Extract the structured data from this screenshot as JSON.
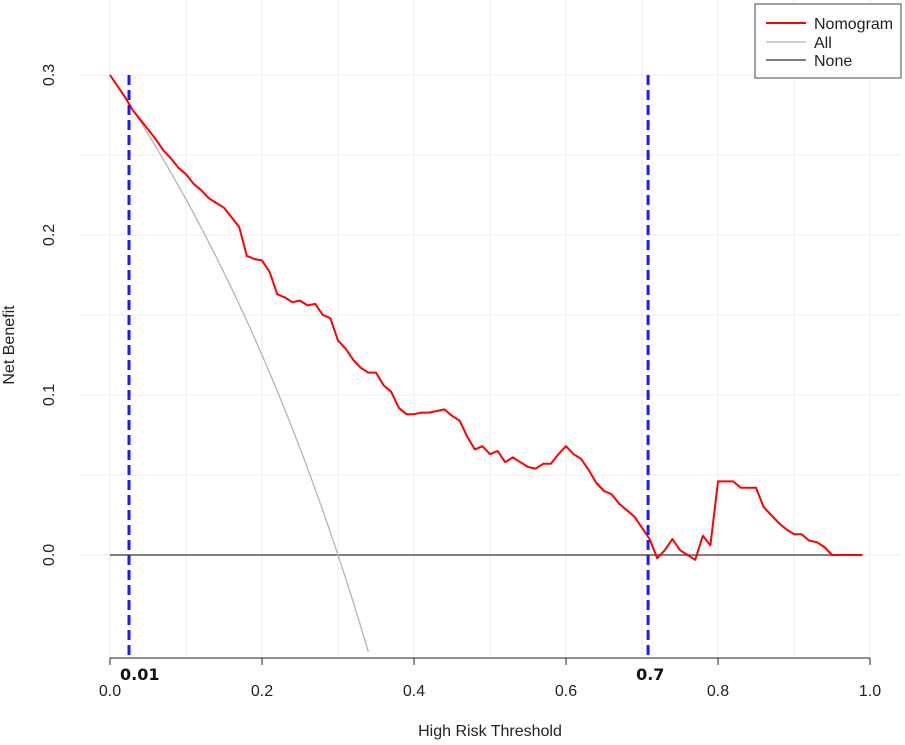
{
  "chart_data": {
    "type": "line",
    "xlabel": "High Risk Threshold",
    "ylabel": "Net Benefit",
    "xlim": [
      0.0,
      1.0
    ],
    "ylim": [
      -0.065,
      0.345
    ],
    "xticks": [
      "0.0",
      "0.2",
      "0.4",
      "0.6",
      "0.8",
      "1.0"
    ],
    "yticks": [
      "0.0",
      "0.1",
      "0.2",
      "0.3"
    ],
    "grid": true,
    "legend_position": "top-right",
    "series": [
      {
        "name": "Nomogram",
        "color": "#ff0000",
        "x": [
          0.0,
          0.01,
          0.02,
          0.03,
          0.04,
          0.05,
          0.06,
          0.07,
          0.08,
          0.09,
          0.1,
          0.11,
          0.12,
          0.13,
          0.14,
          0.15,
          0.16,
          0.17,
          0.18,
          0.19,
          0.2,
          0.21,
          0.22,
          0.23,
          0.24,
          0.25,
          0.26,
          0.27,
          0.28,
          0.29,
          0.3,
          0.31,
          0.32,
          0.33,
          0.34,
          0.35,
          0.36,
          0.37,
          0.38,
          0.39,
          0.4,
          0.41,
          0.42,
          0.43,
          0.44,
          0.45,
          0.46,
          0.47,
          0.48,
          0.49,
          0.5,
          0.51,
          0.52,
          0.53,
          0.54,
          0.55,
          0.56,
          0.57,
          0.58,
          0.59,
          0.6,
          0.61,
          0.62,
          0.63,
          0.64,
          0.65,
          0.66,
          0.67,
          0.68,
          0.69,
          0.7,
          0.71,
          0.72,
          0.73,
          0.74,
          0.75,
          0.76,
          0.77,
          0.78,
          0.79,
          0.8,
          0.81,
          0.82,
          0.83,
          0.84,
          0.85,
          0.86,
          0.87,
          0.88,
          0.89,
          0.9,
          0.91,
          0.92,
          0.93,
          0.94,
          0.95,
          0.96,
          0.97,
          0.98,
          0.99
        ],
        "y": [
          0.3,
          0.293,
          0.286,
          0.278,
          0.272,
          0.266,
          0.26,
          0.253,
          0.248,
          0.242,
          0.238,
          0.232,
          0.228,
          0.223,
          0.22,
          0.217,
          0.211,
          0.205,
          0.187,
          0.185,
          0.184,
          0.177,
          0.163,
          0.161,
          0.158,
          0.159,
          0.156,
          0.157,
          0.15,
          0.148,
          0.134,
          0.129,
          0.122,
          0.117,
          0.114,
          0.114,
          0.106,
          0.102,
          0.092,
          0.088,
          0.088,
          0.089,
          0.089,
          0.09,
          0.091,
          0.087,
          0.084,
          0.074,
          0.066,
          0.068,
          0.063,
          0.065,
          0.058,
          0.061,
          0.058,
          0.055,
          0.054,
          0.057,
          0.057,
          0.063,
          0.068,
          0.063,
          0.06,
          0.053,
          0.045,
          0.04,
          0.038,
          0.032,
          0.028,
          0.024,
          0.017,
          0.01,
          -0.002,
          0.003,
          0.01,
          0.003,
          0.0,
          -0.003,
          0.012,
          0.006,
          0.046,
          0.046,
          0.046,
          0.042,
          0.042,
          0.042,
          0.03,
          0.025,
          0.02,
          0.016,
          0.013,
          0.013,
          0.009,
          0.008,
          0.005,
          0.0,
          0.0,
          0.0,
          0.0,
          0.0
        ]
      },
      {
        "name": "All",
        "color": "#b4b4b4",
        "prevalence": 0.3,
        "x_end": 0.34
      },
      {
        "name": "None",
        "color": "#555555",
        "value": 0.0
      }
    ],
    "vlines": [
      {
        "x": 0.025,
        "color": "#1a1aff",
        "label": "0.01"
      },
      {
        "x": 0.708,
        "color": "#1a1aff",
        "label": "0.7"
      }
    ]
  }
}
